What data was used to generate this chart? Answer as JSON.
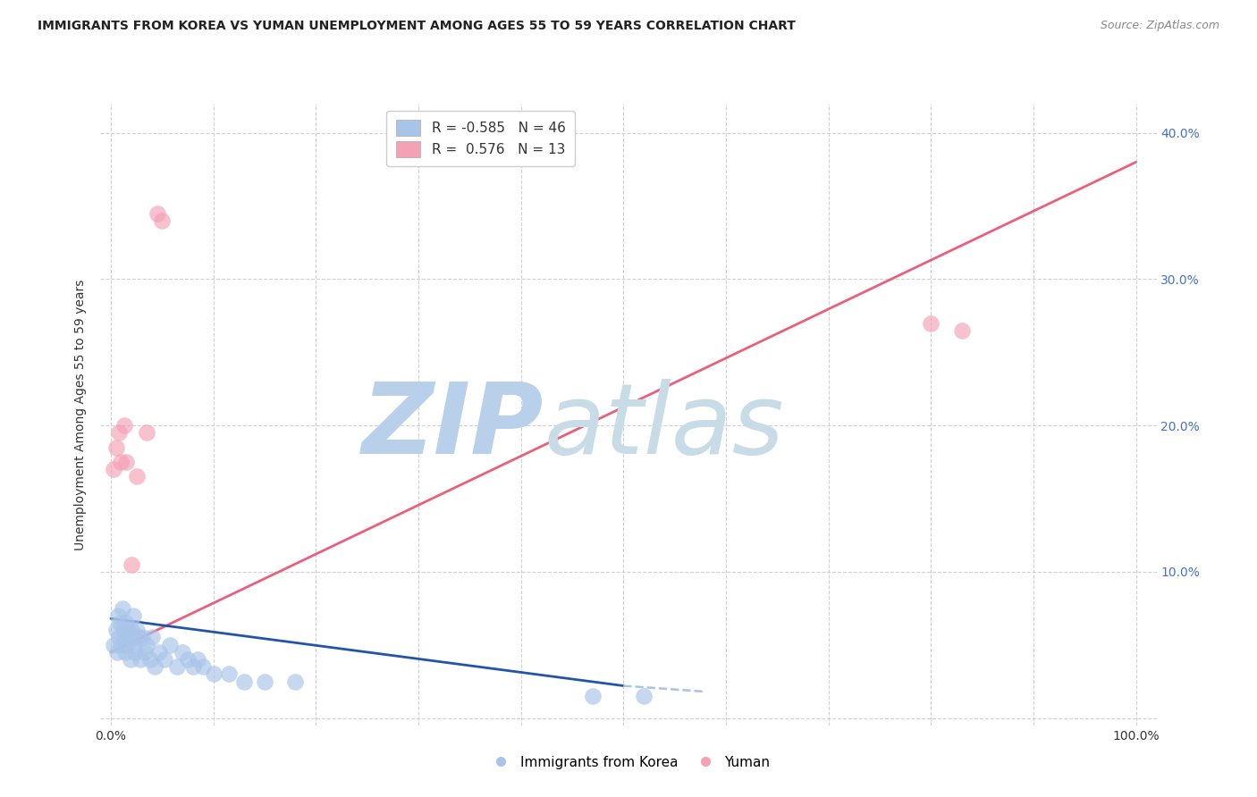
{
  "title": "IMMIGRANTS FROM KOREA VS YUMAN UNEMPLOYMENT AMONG AGES 55 TO 59 YEARS CORRELATION CHART",
  "source": "Source: ZipAtlas.com",
  "ylabel": "Unemployment Among Ages 55 to 59 years",
  "blue_R": "-0.585",
  "blue_N": "46",
  "pink_R": "0.576",
  "pink_N": "13",
  "blue_color": "#a8c4e8",
  "pink_color": "#f4a0b5",
  "blue_line_color": "#2255aa",
  "pink_line_color": "#e8607a",
  "blue_scatter_x": [
    0.3,
    0.5,
    0.6,
    0.7,
    0.8,
    0.9,
    1.0,
    1.1,
    1.2,
    1.3,
    1.4,
    1.5,
    1.6,
    1.7,
    1.8,
    1.9,
    2.0,
    2.1,
    2.2,
    2.3,
    2.4,
    2.5,
    2.7,
    2.9,
    3.1,
    3.3,
    3.5,
    3.8,
    4.0,
    4.3,
    4.7,
    5.2,
    5.8,
    6.5,
    7.0,
    7.5,
    8.0,
    8.5,
    9.0,
    10.0,
    11.5,
    13.0,
    15.0,
    18.0,
    47.0,
    52.0
  ],
  "blue_scatter_y": [
    5.0,
    6.0,
    4.5,
    7.0,
    5.5,
    6.5,
    5.0,
    7.5,
    6.0,
    5.5,
    4.5,
    6.5,
    5.0,
    6.0,
    5.5,
    4.0,
    6.0,
    5.5,
    7.0,
    5.0,
    4.5,
    6.0,
    5.5,
    4.0,
    5.5,
    4.5,
    5.0,
    4.0,
    5.5,
    3.5,
    4.5,
    4.0,
    5.0,
    3.5,
    4.5,
    4.0,
    3.5,
    4.0,
    3.5,
    3.0,
    3.0,
    2.5,
    2.5,
    2.5,
    1.5,
    1.5
  ],
  "pink_scatter_x": [
    0.3,
    0.5,
    0.8,
    1.0,
    1.3,
    1.5,
    2.0,
    2.5,
    3.5,
    4.5,
    5.0,
    80.0,
    83.0
  ],
  "pink_scatter_y": [
    17.0,
    18.5,
    19.5,
    17.5,
    20.0,
    17.5,
    10.5,
    16.5,
    19.5,
    34.5,
    34.0,
    27.0,
    26.5
  ],
  "blue_trend_x1": 0,
  "blue_trend_y1": 6.8,
  "blue_trend_x2": 50,
  "blue_trend_y2": 2.2,
  "blue_dash_x1": 50,
  "blue_dash_y1": 2.2,
  "blue_dash_x2": 58,
  "blue_dash_y2": 1.8,
  "pink_trend_x1": 0,
  "pink_trend_y1": 4.5,
  "pink_trend_x2": 100,
  "pink_trend_y2": 38.0,
  "xlim_min": -1,
  "xlim_max": 102,
  "ylim_min": -0.5,
  "ylim_max": 42,
  "xticks": [
    0,
    10,
    20,
    30,
    40,
    50,
    60,
    70,
    80,
    90,
    100
  ],
  "yticks": [
    0,
    10,
    20,
    30,
    40
  ],
  "watermark_zip": "ZIP",
  "watermark_atlas": "atlas",
  "watermark_color": "#c8dcf0",
  "background_color": "#ffffff",
  "grid_color": "#d0d0d0",
  "title_color": "#222222",
  "source_color": "#888888",
  "ylabel_color": "#333333",
  "right_tick_color": "#4472c4",
  "bottom_tick_color": "#333333"
}
